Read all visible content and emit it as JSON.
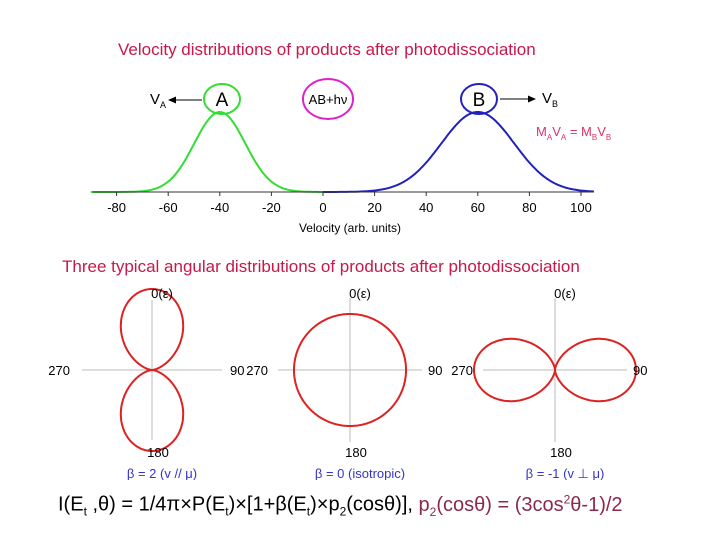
{
  "top_section": {
    "title": "Velocity distributions of products after photodissociation",
    "species_a": "A",
    "species_b": "B",
    "parent_label": "AB+hν",
    "velocity_a_label": "V",
    "velocity_a_sub": "A",
    "velocity_b_label": "V",
    "velocity_b_sub": "B",
    "momentum": {
      "m_a": "M",
      "sub_a": "A",
      "v_a": "V",
      "sub_va": "A",
      "eq": " = ",
      "m_b": "M",
      "sub_b": "B",
      "v_b": "V",
      "sub_vb": "B"
    },
    "colors": {
      "a": "#33dd33",
      "b": "#2222bb",
      "parent_circle": "#dd22cc",
      "momentum": "#dd3366"
    }
  },
  "chart_data": {
    "type": "line",
    "xlabel": "Velocity (arb. units)",
    "ticks": [
      -80,
      -60,
      -40,
      -20,
      0,
      20,
      40,
      60,
      80,
      100
    ],
    "xlim": [
      -90,
      105
    ],
    "series": [
      {
        "name": "A",
        "center": -40,
        "width": 14,
        "peak": 1.0,
        "range": [
          -90,
          0
        ],
        "color": "#33dd33"
      },
      {
        "name": "B",
        "center": 60,
        "width": 20,
        "peak": 1.0,
        "range": [
          0,
          105
        ],
        "color": "#2222bb"
      }
    ]
  },
  "angular_section": {
    "title": "Three typical angular distributions of products after photodissociation",
    "plot_color": "#dd2222",
    "plots": [
      {
        "top": "0(ε)",
        "right": "90",
        "left": "270",
        "bottom": "180",
        "beta": 2,
        "caption": "β = 2 (v // μ)"
      },
      {
        "top": "0(ε)",
        "right": "90",
        "left": "270",
        "bottom": "180",
        "beta": 0,
        "caption": "β = 0 (isotropic)"
      },
      {
        "top": "0(ε)",
        "right": "90",
        "left": "270",
        "bottom": "180",
        "beta": -1,
        "caption": "β = -1 (v ⊥ μ)"
      }
    ],
    "caption_color": "#3333cc"
  },
  "formula": {
    "part1": "I(E",
    "sub_t1": "t",
    "part2": " ,θ) = 1/4π×P(E",
    "sub_t2": "t",
    "part3": ")×[1+β(E",
    "sub_t3": "t",
    "part4": ")×p",
    "sub_2a": "2",
    "part5": "(cosθ)], ",
    "p2_label": "p",
    "p2_sub": "2",
    "p2_arg": "(cosθ) = (3cos",
    "p2_sup": "2",
    "p2_end": "θ-1)/2"
  }
}
